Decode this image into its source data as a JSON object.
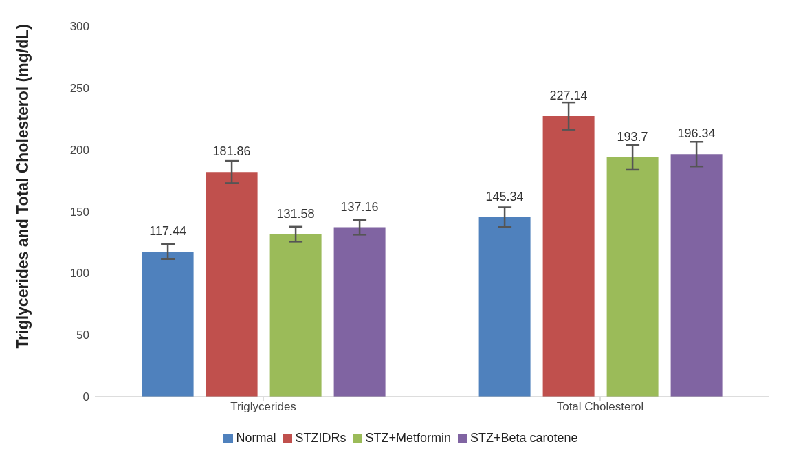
{
  "chart_data": {
    "type": "bar",
    "ylabel": "Triglycerides and Total Cholesterol (mg/dL)",
    "categories": [
      "Triglycerides",
      "Total Cholesterol"
    ],
    "series": [
      {
        "name": "Normal",
        "color": "#4f81bd",
        "values": [
          117.44,
          145.34
        ],
        "errors": [
          6,
          8
        ]
      },
      {
        "name": "STZIDRs",
        "color": "#c0504d",
        "values": [
          181.86,
          227.14
        ],
        "errors": [
          9,
          11
        ]
      },
      {
        "name": "STZ+Metformin",
        "color": "#9bbb59",
        "values": [
          131.58,
          193.7
        ],
        "errors": [
          6,
          10
        ]
      },
      {
        "name": "STZ+Beta carotene",
        "color": "#8064a2",
        "values": [
          137.16,
          196.34
        ],
        "errors": [
          6,
          10
        ]
      }
    ],
    "ylim": [
      0,
      300
    ],
    "yticks": [
      0,
      50,
      100,
      150,
      200,
      250,
      300
    ],
    "grid": false,
    "legend": "bottom",
    "data_labels": true
  }
}
